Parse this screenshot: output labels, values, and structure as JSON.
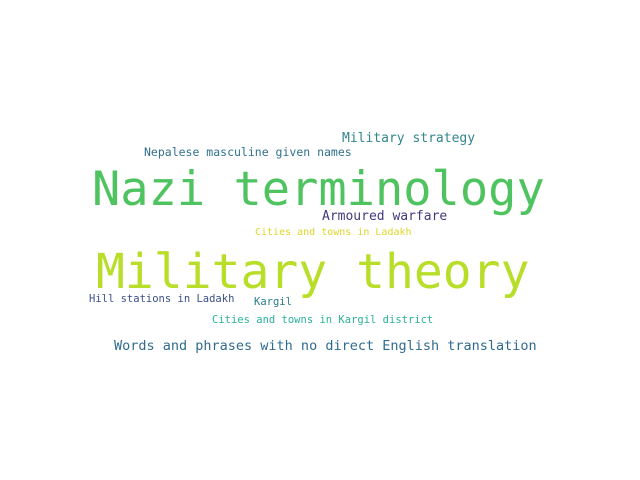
{
  "words": [
    {
      "text": "Nazi terminology",
      "color": "#4ec35f"
    },
    {
      "text": "Military theory",
      "color": "#b8de29"
    },
    {
      "text": "Military strategy",
      "color": "#33848e"
    },
    {
      "text": "Nepalese masculine given names",
      "color": "#31708e"
    },
    {
      "text": "Armoured warfare",
      "color": "#45387f"
    },
    {
      "text": "Cities and towns in Ladakh",
      "color": "#dfd52b"
    },
    {
      "text": "Hill stations in Ladakh",
      "color": "#3c4f8a"
    },
    {
      "text": "Kargil",
      "color": "#287d8e"
    },
    {
      "text": "Cities and towns in Kargil district",
      "color": "#2ab29a"
    },
    {
      "text": "Words and phrases with no direct English translation",
      "color": "#2f6b8e"
    }
  ]
}
